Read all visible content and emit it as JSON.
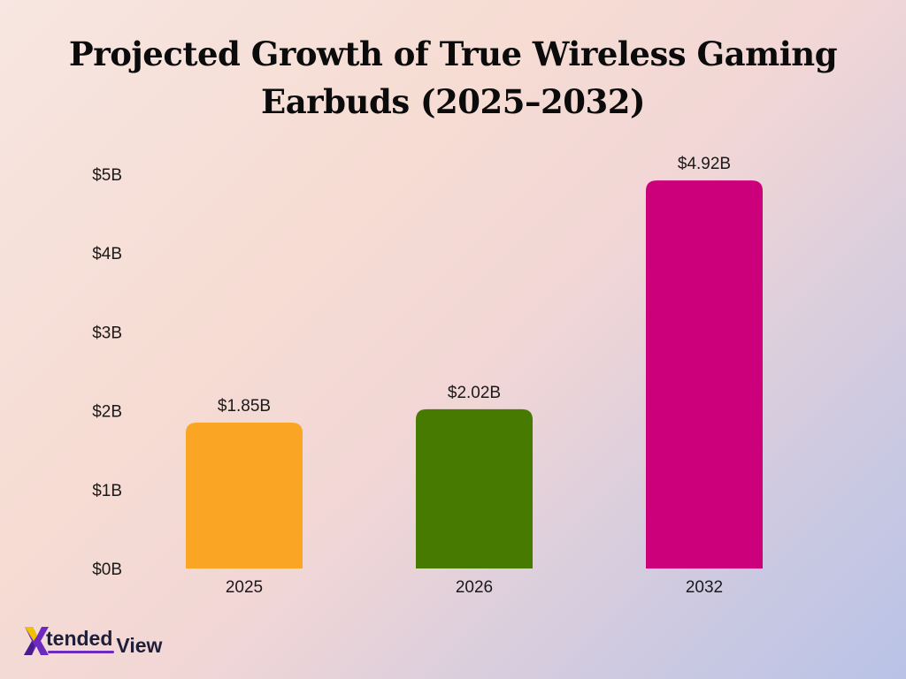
{
  "title_line1": "Projected Growth of True Wireless Gaming",
  "title_line2": "Earbuds (2025–2032)",
  "logo": {
    "text1": "tended",
    "text2": "View",
    "mark_color": "#6b2bbf"
  },
  "chart_data": {
    "type": "bar",
    "title": "Projected Growth of True Wireless Gaming Earbuds (2025–2032)",
    "categories": [
      "2025",
      "2026",
      "2032"
    ],
    "values": [
      1.85,
      2.02,
      4.92
    ],
    "data_labels": [
      "$1.85B",
      "$2.02B",
      "$4.92B"
    ],
    "colors": [
      "#fba524",
      "#467a00",
      "#cc007a"
    ],
    "y_ticks": [
      0,
      1,
      2,
      3,
      4,
      5
    ],
    "y_tick_labels": [
      "$0B",
      "$1B",
      "$2B",
      "$3B",
      "$4B",
      "$5B"
    ],
    "ylim": [
      0,
      5
    ],
    "xlabel": "",
    "ylabel": "",
    "grid": false,
    "legend": "none"
  }
}
